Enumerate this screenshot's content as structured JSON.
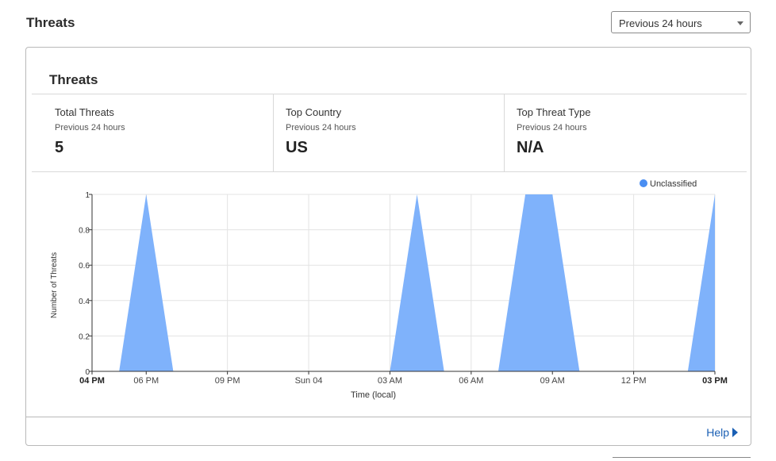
{
  "header": {
    "title": "Threats"
  },
  "time_range": {
    "selected": "Previous 24 hours"
  },
  "card": {
    "title": "Threats",
    "help_label": "Help"
  },
  "stats": [
    {
      "label": "Total Threats",
      "sub": "Previous 24 hours",
      "value": "5"
    },
    {
      "label": "Top Country",
      "sub": "Previous 24 hours",
      "value": "US"
    },
    {
      "label": "Top Threat Type",
      "sub": "Previous 24 hours",
      "value": "N/A"
    }
  ],
  "colors": {
    "series": "#7fb2fb",
    "legend_dot": "#4a8ef2",
    "link": "#1a5fb4"
  },
  "chart_data": {
    "type": "area",
    "xlabel": "Time (local)",
    "ylabel": "Number of Threats",
    "ylim": [
      0,
      1
    ],
    "yticks": [
      "0",
      "0.2",
      "0.4",
      "0.6",
      "0.8",
      "1"
    ],
    "xlim": [
      0,
      23
    ],
    "xticks": [
      {
        "t": 0,
        "label": "04 PM",
        "bold": true
      },
      {
        "t": 2,
        "label": "06 PM",
        "bold": false
      },
      {
        "t": 5,
        "label": "09 PM",
        "bold": false
      },
      {
        "t": 8,
        "label": "Sun 04",
        "bold": false
      },
      {
        "t": 11,
        "label": "03 AM",
        "bold": false
      },
      {
        "t": 14,
        "label": "06 AM",
        "bold": false
      },
      {
        "t": 17,
        "label": "09 AM",
        "bold": false
      },
      {
        "t": 20,
        "label": "12 PM",
        "bold": false
      },
      {
        "t": 23,
        "label": "03 PM",
        "bold": true
      }
    ],
    "grid": true,
    "legend_position": "top-right",
    "series": [
      {
        "name": "Unclassified",
        "x": [
          0,
          1,
          2,
          3,
          4,
          5,
          6,
          7,
          8,
          9,
          10,
          11,
          12,
          13,
          14,
          15,
          16,
          17,
          18,
          19,
          20,
          21,
          22,
          23
        ],
        "values": [
          0,
          0,
          1,
          0,
          0,
          0,
          0,
          0,
          0,
          0,
          0,
          0,
          1,
          0,
          0,
          0,
          1,
          1,
          0,
          0,
          0,
          0,
          0,
          1
        ]
      }
    ]
  }
}
